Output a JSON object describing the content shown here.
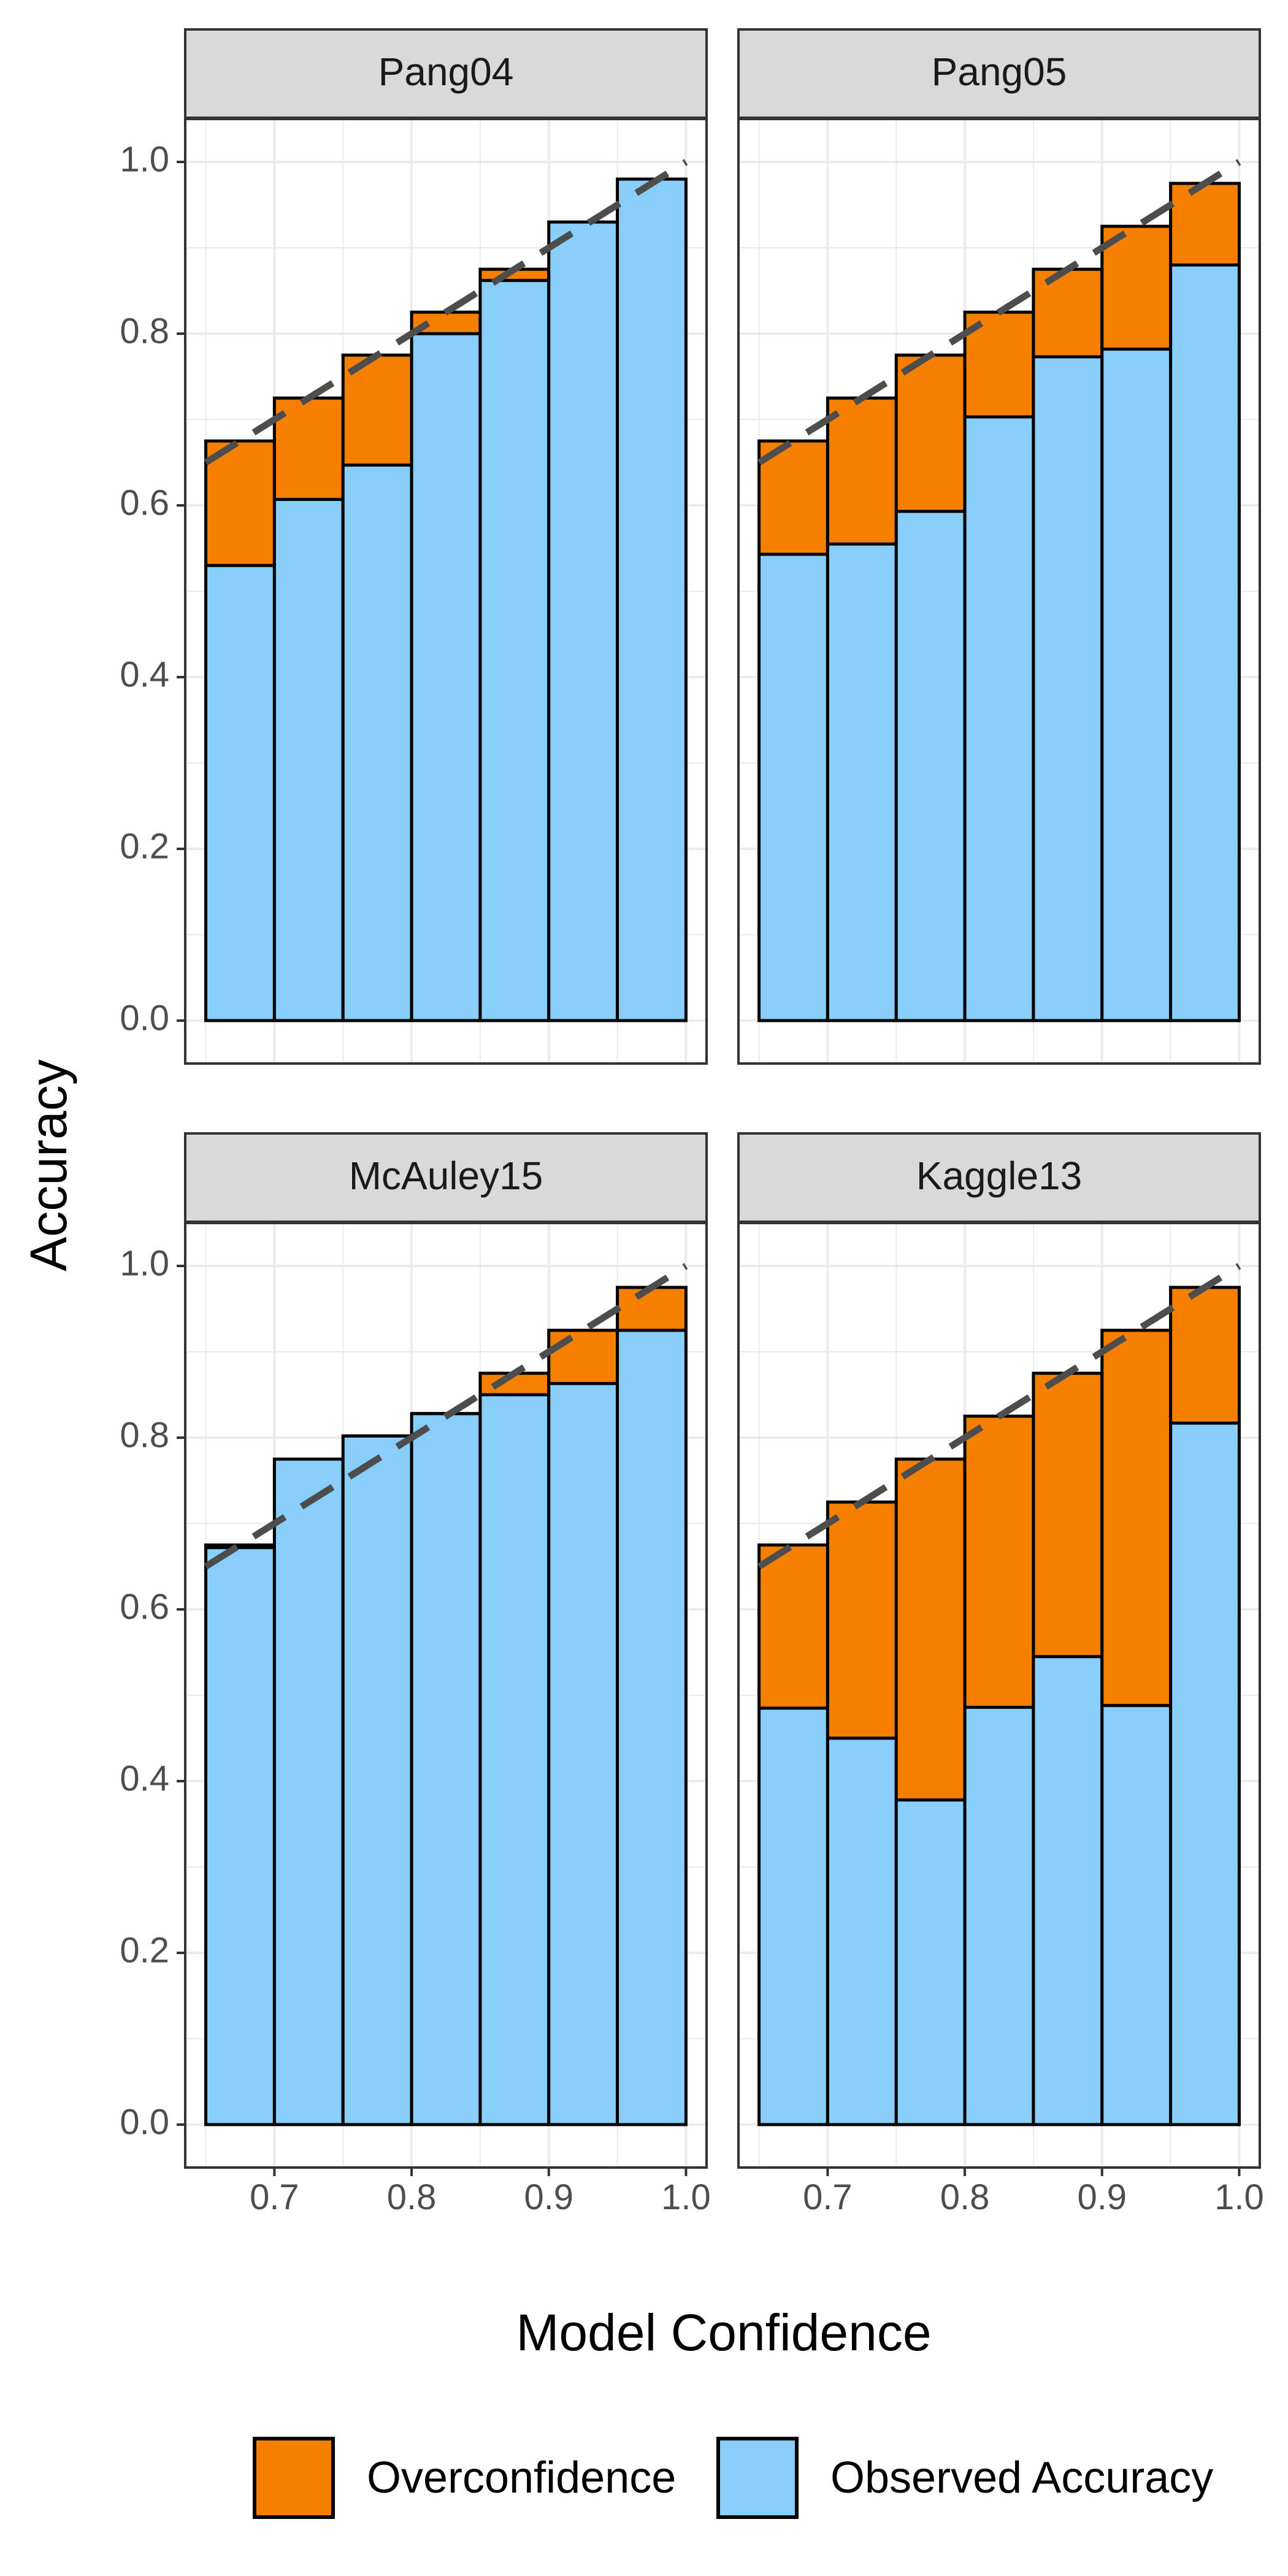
{
  "colors": {
    "overconfidence": "#F77F00",
    "observed": "#87CEFA",
    "bar_outline": "#000000",
    "panel_border": "#333333",
    "strip_fill": "#D9D9D9",
    "grid": "#EBEBEB",
    "diagonal": "#4D4D4D"
  },
  "chart_data": {
    "type": "bar",
    "subtype": "stacked-calibration-facets",
    "xlabel": "Model Confidence",
    "ylabel": "Accuracy",
    "xlim": [
      0.635,
      1.015
    ],
    "ylim": [
      -0.05,
      1.05
    ],
    "x_ticks": [
      "0.7",
      "0.8",
      "0.9",
      "1.0"
    ],
    "y_ticks": [
      "0.0",
      "0.2",
      "0.4",
      "0.6",
      "0.8",
      "1.0"
    ],
    "bins": [
      0.65,
      0.7,
      0.75,
      0.8,
      0.85,
      0.9,
      0.95,
      1.0
    ],
    "expected_accuracy": [
      0.675,
      0.725,
      0.775,
      0.825,
      0.875,
      0.925,
      0.975
    ],
    "diagonal": [
      [
        0.65,
        0.65
      ],
      [
        1.0,
        1.0
      ]
    ],
    "legend": {
      "position": "bottom",
      "entries": [
        {
          "label": "Overconfidence",
          "color_key": "overconfidence"
        },
        {
          "label": "Observed Accuracy",
          "color_key": "observed"
        }
      ]
    },
    "grid": true,
    "facets": [
      {
        "name": "Pang04",
        "observed": [
          0.53,
          0.607,
          0.647,
          0.8,
          0.862,
          0.93,
          0.98
        ]
      },
      {
        "name": "Pang05",
        "observed": [
          0.543,
          0.555,
          0.593,
          0.703,
          0.773,
          0.782,
          0.88
        ]
      },
      {
        "name": "McAuley15",
        "observed": [
          0.672,
          0.775,
          0.802,
          0.828,
          0.85,
          0.863,
          0.925
        ]
      },
      {
        "name": "Kaggle13",
        "observed": [
          0.485,
          0.45,
          0.378,
          0.486,
          0.545,
          0.488,
          0.817
        ]
      }
    ]
  }
}
